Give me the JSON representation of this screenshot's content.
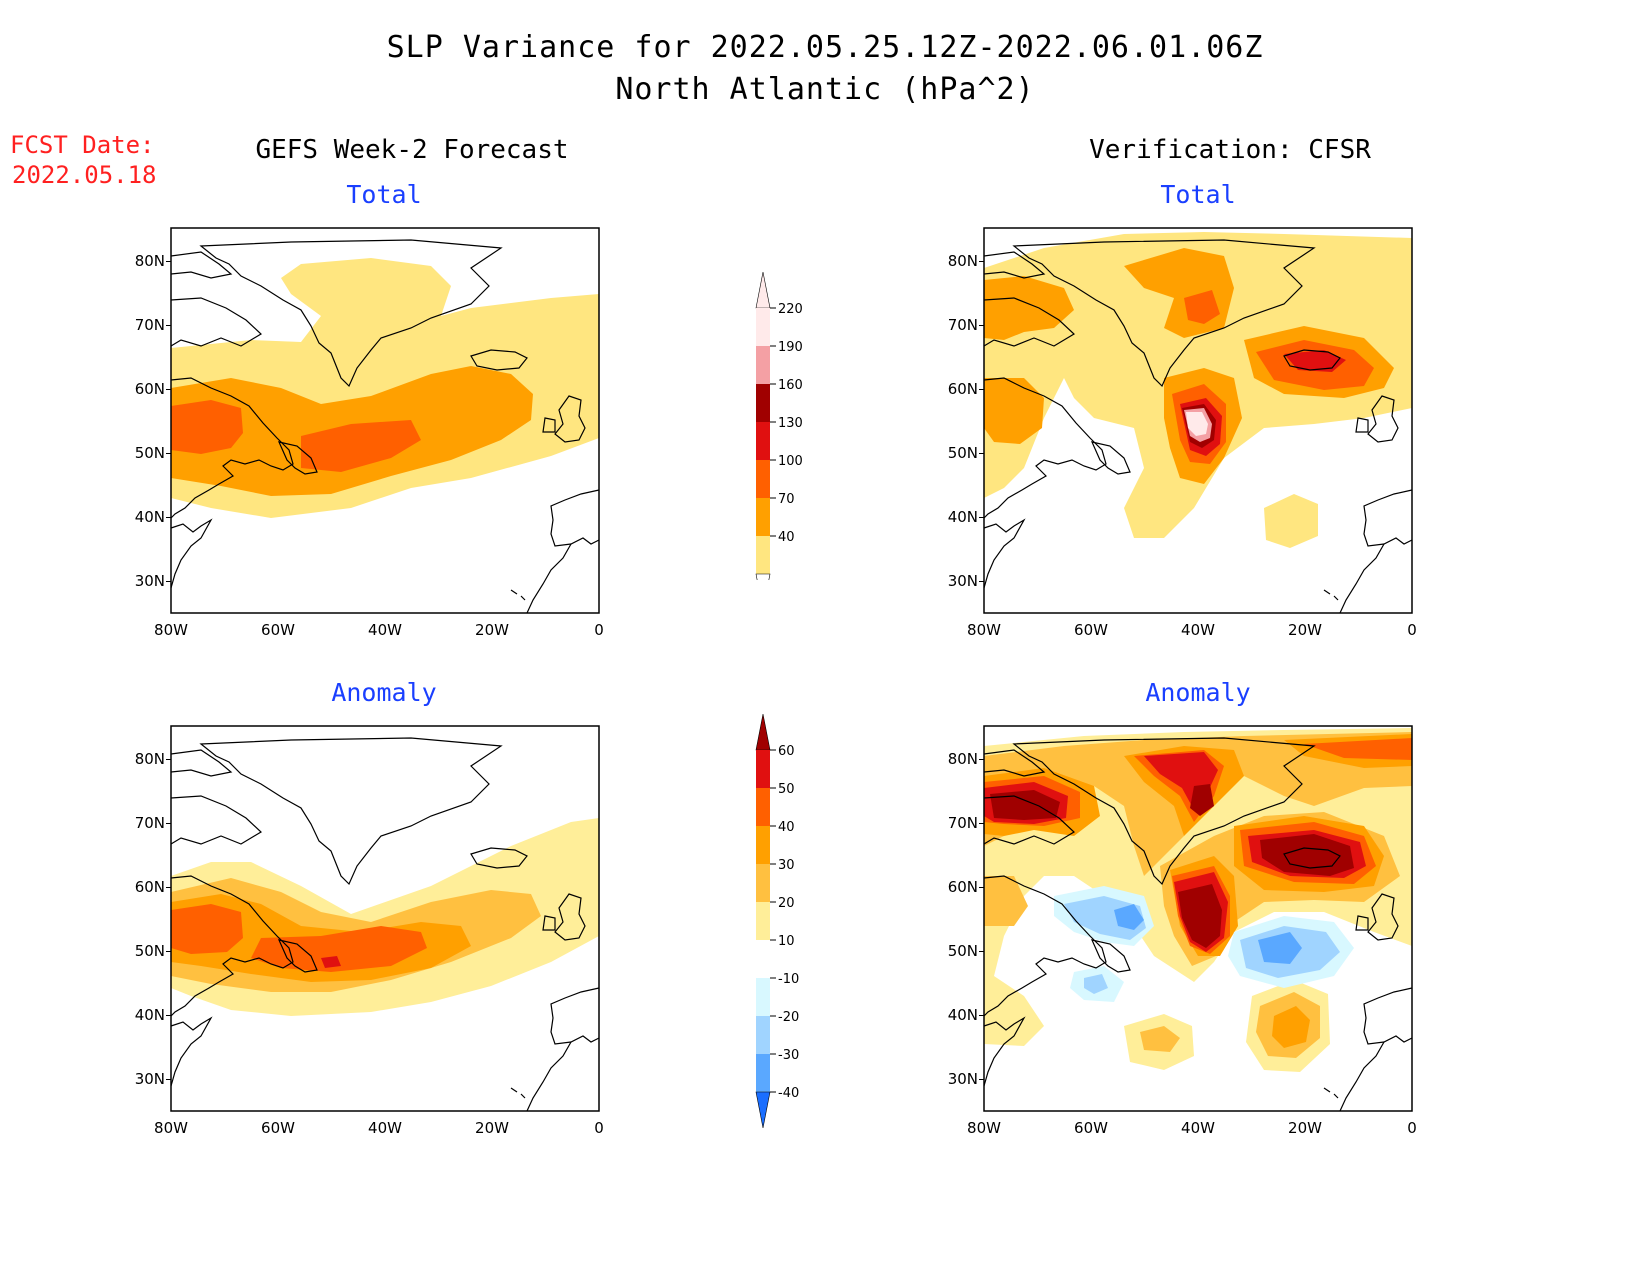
{
  "header": {
    "title_line1": "SLP Variance for 2022.05.25.12Z-2022.06.01.06Z",
    "title_line2": "North Atlantic (hPa^2)",
    "fcst_label": "FCST Date:",
    "fcst_date": "2022.05.18"
  },
  "columns": {
    "left": "GEFS Week-2 Forecast",
    "right": "Verification: CFSR"
  },
  "panel_titles": {
    "total": "Total",
    "anomaly": "Anomaly"
  },
  "axes": {
    "lat_labels": [
      "80N",
      "70N",
      "60N",
      "50N",
      "40N",
      "30N"
    ],
    "lon_labels": [
      "80W",
      "60W",
      "40W",
      "20W",
      "0"
    ]
  },
  "colorbar_total": {
    "labels": [
      "220",
      "190",
      "160",
      "130",
      "100",
      "70",
      "40"
    ],
    "colors": [
      "#ffeaea",
      "#f4a0a4",
      "#a00000",
      "#e01010",
      "#ff6000",
      "#ffa000",
      "#ffe680"
    ]
  },
  "colorbar_anomaly": {
    "labels": [
      "60",
      "50",
      "40",
      "30",
      "20",
      "10",
      "-10",
      "-20",
      "-30",
      "-40"
    ],
    "colors": [
      "#a00000",
      "#e01010",
      "#ff6000",
      "#ffa000",
      "#ffc040",
      "#ffee99",
      "#ffffff",
      "#d8f8ff",
      "#a0d4ff",
      "#5aa8ff",
      "#1a6eff"
    ]
  },
  "fills": {
    "c40": "#ffe680",
    "c70": "#ffa000",
    "c100": "#ff6000",
    "c130": "#e01010",
    "c160": "#a00000",
    "c190": "#f4a0a4",
    "c220": "#ffeaea",
    "a10": "#ffee99",
    "a20": "#ffc040",
    "a30": "#ffa000",
    "a40": "#ff6000",
    "a50": "#e01010",
    "a60": "#a00000",
    "n10": "#d8f8ff",
    "n20": "#a0d4ff",
    "n30": "#5aa8ff"
  }
}
